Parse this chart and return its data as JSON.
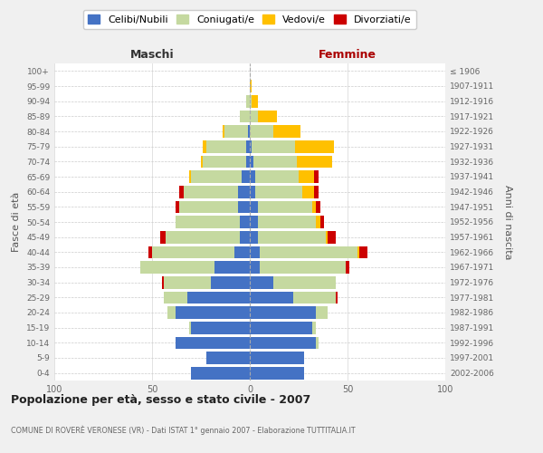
{
  "age_groups": [
    "0-4",
    "5-9",
    "10-14",
    "15-19",
    "20-24",
    "25-29",
    "30-34",
    "35-39",
    "40-44",
    "45-49",
    "50-54",
    "55-59",
    "60-64",
    "65-69",
    "70-74",
    "75-79",
    "80-84",
    "85-89",
    "90-94",
    "95-99",
    "100+"
  ],
  "birth_years": [
    "2002-2006",
    "1997-2001",
    "1992-1996",
    "1987-1991",
    "1982-1986",
    "1977-1981",
    "1972-1976",
    "1967-1971",
    "1962-1966",
    "1957-1961",
    "1952-1956",
    "1947-1951",
    "1942-1946",
    "1937-1941",
    "1932-1936",
    "1927-1931",
    "1922-1926",
    "1917-1921",
    "1912-1916",
    "1907-1911",
    "≤ 1906"
  ],
  "males_celibi": [
    30,
    22,
    38,
    30,
    38,
    32,
    20,
    18,
    8,
    5,
    5,
    6,
    6,
    4,
    2,
    2,
    1,
    0,
    0,
    0,
    0
  ],
  "males_coniugati": [
    0,
    0,
    0,
    1,
    4,
    12,
    24,
    38,
    42,
    38,
    33,
    30,
    28,
    26,
    22,
    20,
    12,
    5,
    2,
    0,
    0
  ],
  "males_vedovi": [
    0,
    0,
    0,
    0,
    0,
    0,
    0,
    0,
    0,
    0,
    0,
    0,
    0,
    1,
    1,
    2,
    1,
    0,
    0,
    0,
    0
  ],
  "males_divorziati": [
    0,
    0,
    0,
    0,
    0,
    0,
    1,
    0,
    2,
    3,
    0,
    2,
    2,
    0,
    0,
    0,
    0,
    0,
    0,
    0,
    0
  ],
  "females_nubili": [
    28,
    28,
    34,
    32,
    34,
    22,
    12,
    5,
    5,
    4,
    4,
    4,
    3,
    3,
    2,
    1,
    0,
    0,
    0,
    0,
    0
  ],
  "females_coniugate": [
    0,
    0,
    1,
    2,
    6,
    22,
    32,
    44,
    50,
    35,
    30,
    28,
    24,
    22,
    22,
    22,
    12,
    4,
    1,
    0,
    0
  ],
  "females_vedove": [
    0,
    0,
    0,
    0,
    0,
    0,
    0,
    0,
    1,
    1,
    2,
    2,
    6,
    8,
    18,
    20,
    14,
    10,
    3,
    1,
    0
  ],
  "females_divorziate": [
    0,
    0,
    0,
    0,
    0,
    1,
    0,
    2,
    4,
    4,
    2,
    2,
    2,
    2,
    0,
    0,
    0,
    0,
    0,
    0,
    0
  ],
  "color_celibi": "#4472c4",
  "color_coniugati": "#c5d9a0",
  "color_vedovi": "#ffc000",
  "color_divorziati": "#cc0000",
  "xlim": 100,
  "title": "Popolazione per età, sesso e stato civile - 2007",
  "subtitle": "COMUNE DI ROVERÈ VERONESE (VR) - Dati ISTAT 1° gennaio 2007 - Elaborazione TUTTITALIA.IT",
  "label_maschi": "Maschi",
  "label_femmine": "Femmine",
  "ylabel_left": "Fasce di età",
  "ylabel_right": "Anni di nascita",
  "legend_labels": [
    "Celibi/Nubili",
    "Coniugati/e",
    "Vedovi/e",
    "Divorziati/e"
  ],
  "bg_color": "#f0f0f0",
  "plot_bg": "#ffffff"
}
